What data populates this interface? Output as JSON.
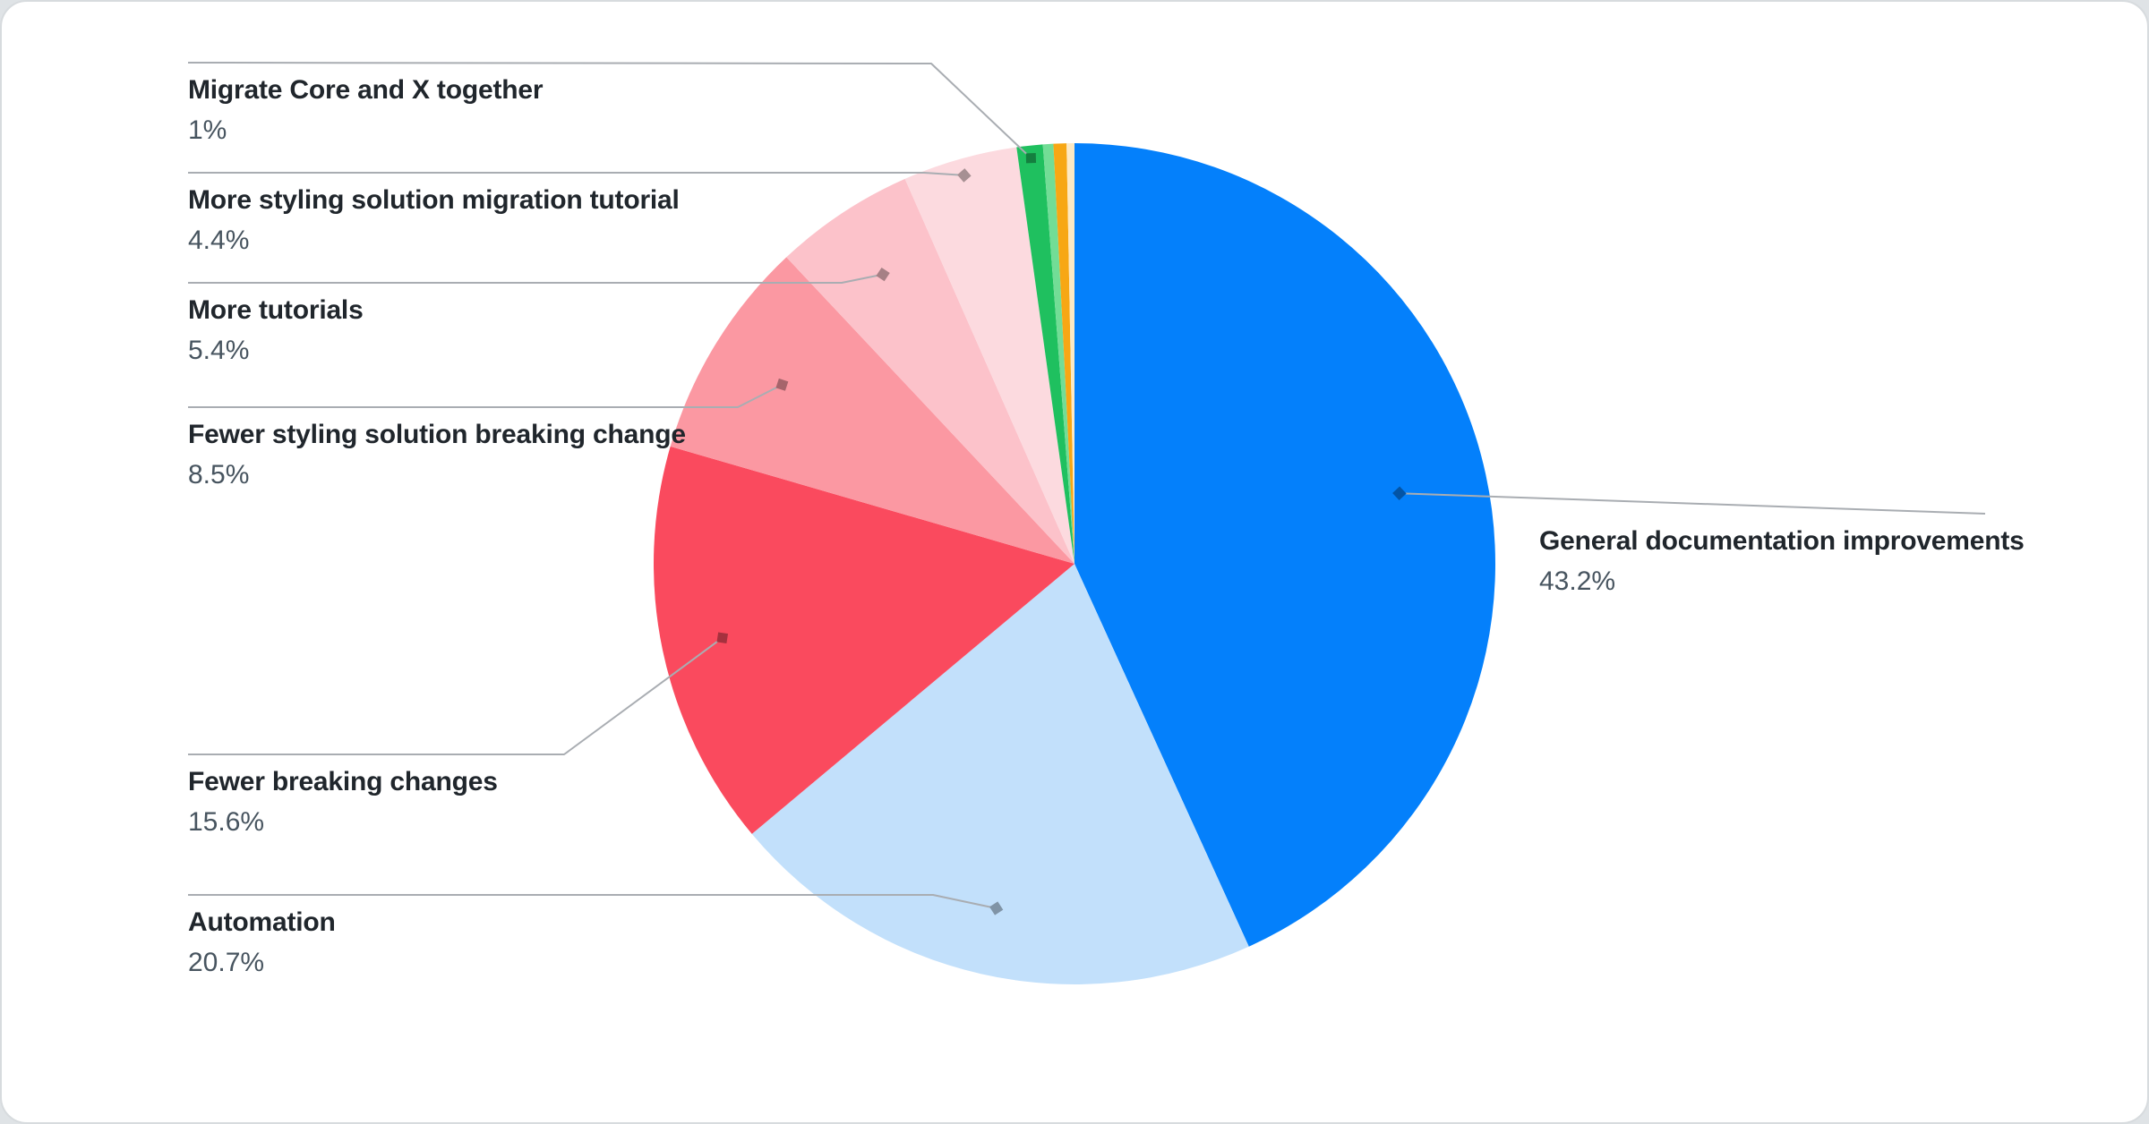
{
  "chart_data": {
    "type": "pie",
    "title": "",
    "start_angle_deg": 0,
    "direction": "clockwise",
    "legend_position": "leader-line-labels",
    "slices": [
      {
        "label": "General documentation improvements",
        "percent_text": "43.2%",
        "value": 43.2,
        "color": "#0480fb"
      },
      {
        "label": "Automation",
        "percent_text": "20.7%",
        "value": 20.7,
        "color": "#c2e0fb"
      },
      {
        "label": "Fewer breaking changes",
        "percent_text": "15.6%",
        "value": 15.6,
        "color": "#fa4a5e"
      },
      {
        "label": "Fewer styling solution breaking change",
        "percent_text": "8.5%",
        "value": 8.5,
        "color": "#fb98a2"
      },
      {
        "label": "More tutorials",
        "percent_text": "5.4%",
        "value": 5.4,
        "color": "#fcc2ca"
      },
      {
        "label": "More styling solution migration tutorial",
        "percent_text": "4.4%",
        "value": 4.4,
        "color": "#fcdadf"
      },
      {
        "label": "Migrate Core and X together",
        "percent_text": "1%",
        "value": 1.0,
        "color": "#1fc05f"
      },
      {
        "label": null,
        "percent_text": null,
        "value": 0.4,
        "color": "#72dd96"
      },
      {
        "label": null,
        "percent_text": null,
        "value": 0.5,
        "color": "#f7a714"
      },
      {
        "label": null,
        "percent_text": null,
        "value": 0.3,
        "color": "#fce9c4"
      }
    ],
    "colors": {
      "label_title": "#20262c",
      "label_percent": "#47545f",
      "leader_line": "#a9adb2",
      "card_background": "#ffffff",
      "card_border": "#d7dbde"
    }
  }
}
